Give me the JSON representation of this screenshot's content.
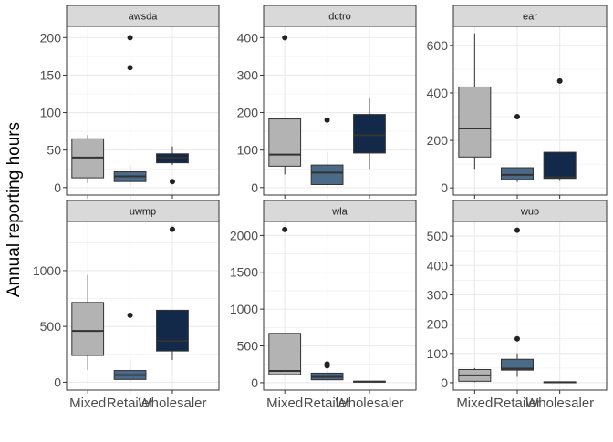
{
  "chart_data": {
    "type": "boxplot",
    "ylabel": "Annual reporting hours",
    "xlabel": "",
    "categories": [
      "Mixed",
      "Retailer",
      "Wholesaler"
    ],
    "colors": {
      "Mixed": "#b3b3b3",
      "Retailer": "#4a6a88",
      "Wholesaler": "#13294a",
      "strip_fill": "#d9d9d9",
      "grid": "#ebebeb",
      "panel_border": "#333333",
      "outlier": "#222222"
    },
    "grid": true,
    "legend": "none",
    "facets": [
      {
        "title": "awsda",
        "ylim": [
          -10,
          215
        ],
        "yticks": [
          0,
          50,
          100,
          150,
          200
        ],
        "boxes": [
          {
            "category": "Mixed",
            "whisker_low": 6,
            "q1": 13,
            "median": 40,
            "q3": 65,
            "whisker_high": 70,
            "outliers": []
          },
          {
            "category": "Retailer",
            "whisker_low": 2,
            "q1": 8,
            "median": 15,
            "q3": 21,
            "whisker_high": 30,
            "outliers": [
              160,
              200
            ]
          },
          {
            "category": "Wholesaler",
            "whisker_low": 30,
            "q1": 33,
            "median": 40,
            "q3": 45,
            "whisker_high": 55,
            "outliers": [
              8
            ]
          }
        ]
      },
      {
        "title": "dctro",
        "ylim": [
          -20,
          430
        ],
        "yticks": [
          0,
          100,
          200,
          300,
          400
        ],
        "boxes": [
          {
            "category": "Mixed",
            "whisker_low": 35,
            "q1": 57,
            "median": 88,
            "q3": 183,
            "whisker_high": 183,
            "outliers": [
              400
            ]
          },
          {
            "category": "Retailer",
            "whisker_low": 2,
            "q1": 8,
            "median": 40,
            "q3": 60,
            "whisker_high": 95,
            "outliers": [
              180
            ]
          },
          {
            "category": "Wholesaler",
            "whisker_low": 50,
            "q1": 92,
            "median": 140,
            "q3": 195,
            "whisker_high": 238,
            "outliers": []
          }
        ]
      },
      {
        "title": "ear",
        "ylim": [
          -30,
          680
        ],
        "yticks": [
          0,
          200,
          400,
          600
        ],
        "boxes": [
          {
            "category": "Mixed",
            "whisker_low": 80,
            "q1": 130,
            "median": 250,
            "q3": 425,
            "whisker_high": 650,
            "outliers": []
          },
          {
            "category": "Retailer",
            "whisker_low": 25,
            "q1": 35,
            "median": 55,
            "q3": 85,
            "whisker_high": 85,
            "outliers": [
              300
            ]
          },
          {
            "category": "Wholesaler",
            "whisker_low": 30,
            "q1": 40,
            "median": 45,
            "q3": 150,
            "whisker_high": 150,
            "outliers": [
              450
            ]
          }
        ]
      },
      {
        "title": "uwmp",
        "ylim": [
          -70,
          1440
        ],
        "yticks": [
          0,
          500,
          1000
        ],
        "boxes": [
          {
            "category": "Mixed",
            "whisker_low": 110,
            "q1": 240,
            "median": 460,
            "q3": 715,
            "whisker_high": 960,
            "outliers": []
          },
          {
            "category": "Retailer",
            "whisker_low": 5,
            "q1": 25,
            "median": 65,
            "q3": 105,
            "whisker_high": 205,
            "outliers": [
              600
            ]
          },
          {
            "category": "Wholesaler",
            "whisker_low": 200,
            "q1": 280,
            "median": 370,
            "q3": 645,
            "whisker_high": 645,
            "outliers": [
              1370
            ]
          }
        ]
      },
      {
        "title": "wla",
        "ylim": [
          -100,
          2190
        ],
        "yticks": [
          0,
          500,
          1000,
          1500,
          2000
        ],
        "boxes": [
          {
            "category": "Mixed",
            "whisker_low": 100,
            "q1": 110,
            "median": 160,
            "q3": 670,
            "whisker_high": 670,
            "outliers": [
              2080
            ]
          },
          {
            "category": "Retailer",
            "whisker_low": 20,
            "q1": 40,
            "median": 80,
            "q3": 130,
            "whisker_high": 170,
            "outliers": [
              230,
              255
            ]
          },
          {
            "category": "Wholesaler",
            "whisker_low": 5,
            "q1": 10,
            "median": 15,
            "q3": 20,
            "whisker_high": 25,
            "outliers": []
          }
        ]
      },
      {
        "title": "wuo",
        "ylim": [
          -25,
          550
        ],
        "yticks": [
          0,
          100,
          200,
          300,
          400,
          500
        ],
        "boxes": [
          {
            "category": "Mixed",
            "whisker_low": 2,
            "q1": 5,
            "median": 25,
            "q3": 45,
            "whisker_high": 50,
            "outliers": []
          },
          {
            "category": "Retailer",
            "whisker_low": 20,
            "q1": 43,
            "median": 48,
            "q3": 80,
            "whisker_high": 100,
            "outliers": [
              150,
              520
            ]
          },
          {
            "category": "Wholesaler",
            "whisker_low": 0,
            "q1": 1,
            "median": 2,
            "q3": 3,
            "whisker_high": 4,
            "outliers": []
          }
        ]
      }
    ]
  }
}
